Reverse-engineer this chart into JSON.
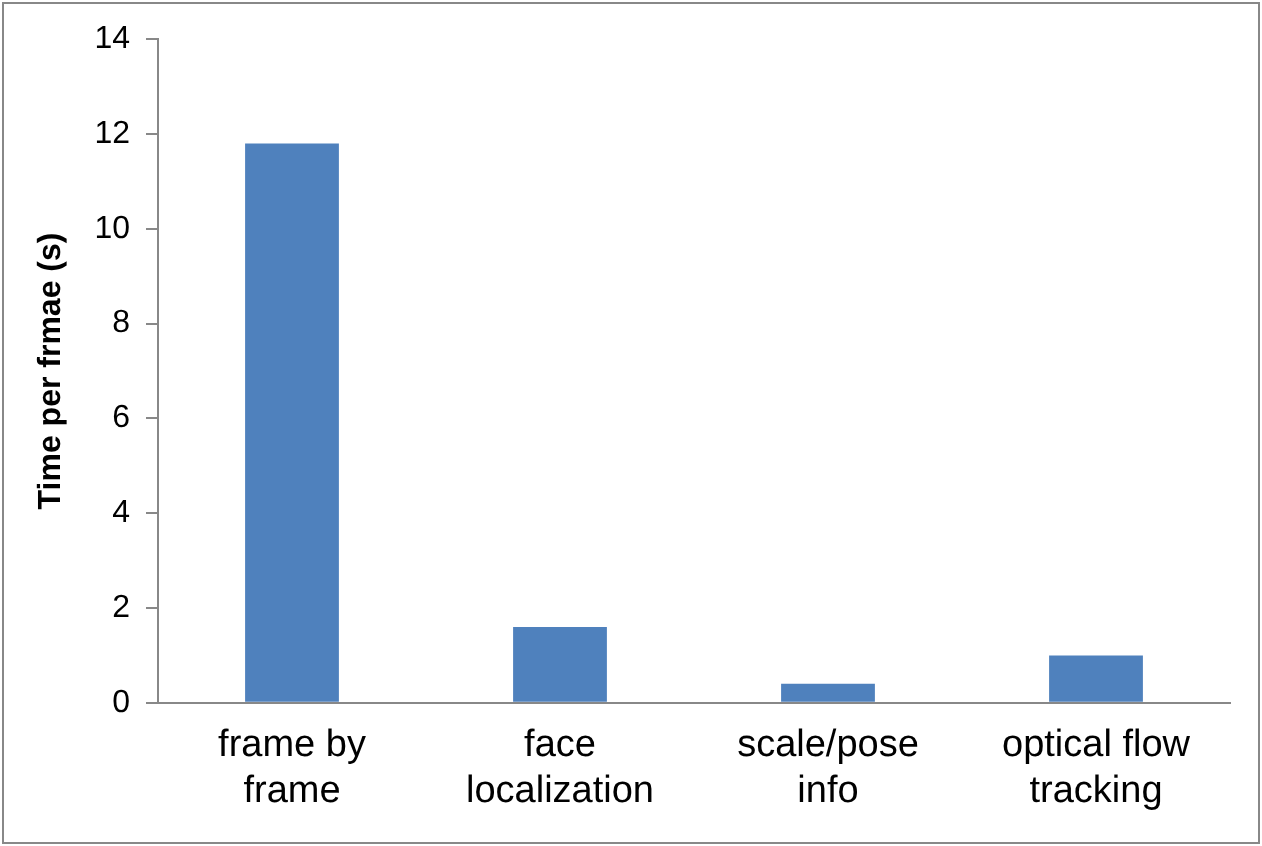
{
  "chart_data": {
    "type": "bar",
    "ylabel": "Time per frmae (s)",
    "categories": [
      "frame by frame",
      "face localization",
      "scale/pose info",
      "optical flow tracking"
    ],
    "values": [
      11.8,
      1.6,
      0.4,
      1.0
    ],
    "color": "#4f81bd",
    "ylim": [
      0,
      14
    ],
    "yticks": [
      0,
      2,
      4,
      6,
      8,
      10,
      12,
      14
    ],
    "grid": false,
    "legend": false
  }
}
